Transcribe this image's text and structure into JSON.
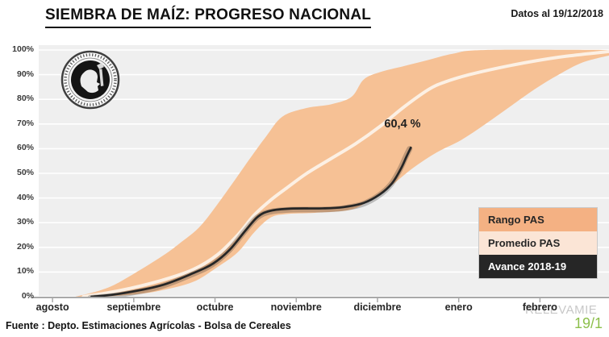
{
  "header": {
    "title": "SIEMBRA DE MAÍZ: PROGRESO NACIONAL",
    "data_badge": "Datos al 19/12/2018"
  },
  "annotation": {
    "label": "60,4 %"
  },
  "legend": {
    "items": [
      {
        "label": "Rango PAS",
        "bg": "#F4B183",
        "fg": "#262626"
      },
      {
        "label": "Promedio PAS",
        "bg": "#FBE5D6",
        "fg": "#262626"
      },
      {
        "label": "Avance 2018-19",
        "bg": "#262626",
        "fg": "#FFFFFF"
      }
    ]
  },
  "footer": {
    "source": "Fuente : Depto. Estimaciones Agrícolas - Bolsa de Cereales"
  },
  "watermark": {
    "text": "RELEVAMIE",
    "date": "19/1",
    "text_color": "#C8C8C8",
    "date_color": "#8CBF4B"
  },
  "logo": "bolsa-de-cereales-seal",
  "chart_data": {
    "type": "area",
    "title": "SIEMBRA DE MAÍZ: PROGRESO NACIONAL",
    "xlabel": "",
    "ylabel": "",
    "x_unit": "months, 0 = inicio de agosto",
    "xlim": [
      0,
      7
    ],
    "ylim": [
      0,
      100
    ],
    "grid": "horizontal white gridlines every 10% on light gray panel",
    "legend_position": "right-center stacked boxes",
    "panel_bg": "#EFEFEF",
    "categories": [
      "agosto",
      "septiembre",
      "octubre",
      "noviembre",
      "diciembre",
      "enero",
      "febrero"
    ],
    "yticks": [
      "0%",
      "10%",
      "20%",
      "30%",
      "40%",
      "50%",
      "60%",
      "70%",
      "80%",
      "90%",
      "100%"
    ],
    "series": [
      {
        "name": "Rango PAS",
        "type": "band",
        "color": "#F6C195",
        "points_upper": [
          [
            0.45,
            0
          ],
          [
            0.75,
            2.5
          ],
          [
            1.0,
            6
          ],
          [
            1.5,
            16
          ],
          [
            1.75,
            22
          ],
          [
            2.0,
            29
          ],
          [
            2.3,
            42
          ],
          [
            2.6,
            56
          ],
          [
            2.8,
            65
          ],
          [
            3.0,
            73
          ],
          [
            3.3,
            76.5
          ],
          [
            3.6,
            78
          ],
          [
            3.85,
            81
          ],
          [
            4.0,
            88
          ],
          [
            4.2,
            91
          ],
          [
            4.5,
            93.5
          ],
          [
            4.8,
            96
          ],
          [
            5.1,
            98.5
          ],
          [
            5.5,
            100
          ],
          [
            7.05,
            100
          ]
        ],
        "points_lower": [
          [
            0.8,
            0
          ],
          [
            1.2,
            1
          ],
          [
            1.5,
            2.5
          ],
          [
            1.9,
            6
          ],
          [
            2.2,
            12
          ],
          [
            2.45,
            18
          ],
          [
            2.65,
            26
          ],
          [
            2.85,
            32
          ],
          [
            3.05,
            33.5
          ],
          [
            3.4,
            34
          ],
          [
            3.8,
            35
          ],
          [
            4.0,
            37.5
          ],
          [
            4.3,
            44
          ],
          [
            4.6,
            52
          ],
          [
            4.9,
            58.5
          ],
          [
            5.2,
            63.5
          ],
          [
            5.5,
            70
          ],
          [
            5.8,
            77
          ],
          [
            6.1,
            84
          ],
          [
            6.4,
            90
          ],
          [
            6.7,
            95
          ],
          [
            7.05,
            98
          ]
        ]
      },
      {
        "name": "Promedio PAS",
        "type": "line",
        "color": "#FCF0E4",
        "points": [
          [
            0.55,
            0
          ],
          [
            1.0,
            2.5
          ],
          [
            1.5,
            6.5
          ],
          [
            1.9,
            11
          ],
          [
            2.2,
            17
          ],
          [
            2.45,
            25
          ],
          [
            2.65,
            33
          ],
          [
            2.85,
            39
          ],
          [
            3.05,
            44
          ],
          [
            3.3,
            50
          ],
          [
            3.6,
            56
          ],
          [
            3.9,
            62
          ],
          [
            4.2,
            69
          ],
          [
            4.5,
            77
          ],
          [
            4.8,
            84
          ],
          [
            5.0,
            87
          ],
          [
            5.3,
            90
          ],
          [
            5.7,
            93
          ],
          [
            6.1,
            95.5
          ],
          [
            6.5,
            97.5
          ],
          [
            7.05,
            99.5
          ]
        ]
      },
      {
        "name": "Avance 2018-19",
        "type": "line",
        "color": "#262626",
        "end_value": 60.4,
        "end_label": "60,4 %",
        "points": [
          [
            0.65,
            0
          ],
          [
            1.0,
            1.2
          ],
          [
            1.5,
            4.5
          ],
          [
            1.9,
            9.5
          ],
          [
            2.15,
            13.5
          ],
          [
            2.35,
            19
          ],
          [
            2.55,
            27
          ],
          [
            2.7,
            32.5
          ],
          [
            2.85,
            34.8
          ],
          [
            3.1,
            35.7
          ],
          [
            3.5,
            35.8
          ],
          [
            3.75,
            36.3
          ],
          [
            4.0,
            38
          ],
          [
            4.2,
            41.5
          ],
          [
            4.35,
            46
          ],
          [
            4.46,
            52
          ],
          [
            4.53,
            57
          ],
          [
            4.58,
            60.4
          ]
        ]
      }
    ]
  }
}
